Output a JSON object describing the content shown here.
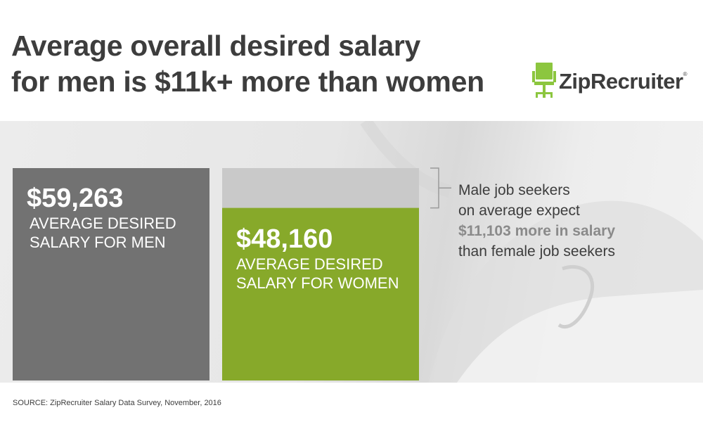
{
  "title": {
    "line1": "Average overall desired salary",
    "line2": "for men is $11k+ more than women"
  },
  "logo": {
    "text": "ZipRecruiter",
    "registered": "®",
    "icon": "chair-icon",
    "color": "#8cc63f"
  },
  "chart_data": {
    "type": "bar",
    "title": "Average overall desired salary for men is $11k+ more than women",
    "categories": [
      "AVERAGE DESIRED SALARY FOR MEN",
      "AVERAGE DESIRED SALARY FOR WOMEN"
    ],
    "values": [
      59263,
      48160
    ],
    "value_labels": [
      "$59,263",
      "$48,160"
    ],
    "caption_lines": [
      [
        "AVERAGE DESIRED",
        "SALARY FOR MEN"
      ],
      [
        "AVERAGE DESIRED",
        "SALARY FOR WOMEN"
      ]
    ],
    "colors": [
      "#727272",
      "#87a92a"
    ],
    "gap_color": "#c9c9c9",
    "ylim": [
      0,
      59263
    ],
    "grid": false,
    "legend": "none"
  },
  "annotation": {
    "line1": "Male job seekers",
    "line2": "on average expect",
    "highlight": "$11,103 more in salary",
    "line4": "than female job seekers"
  },
  "source": "SOURCE: ZipRecruiter Salary Data Survey, November, 2016"
}
